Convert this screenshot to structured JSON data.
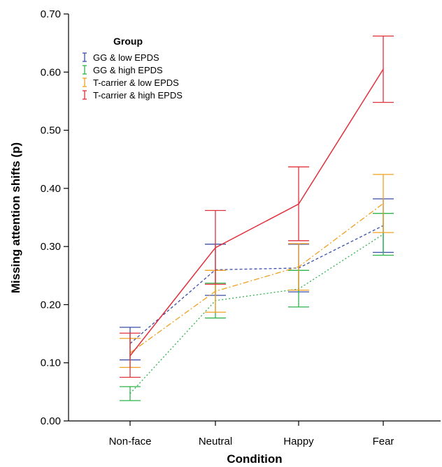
{
  "chart_data": {
    "type": "line",
    "title": "",
    "xlabel": "Condition",
    "ylabel": "Missing attention shifts (p)",
    "categories": [
      "Non-face",
      "Neutral",
      "Happy",
      "Fear"
    ],
    "ylim": [
      0,
      0.7
    ],
    "yticks": [
      "0.00",
      "0.10",
      "0.20",
      "0.30",
      "0.40",
      "0.50",
      "0.60",
      "0.70"
    ],
    "grid": false,
    "legend": {
      "title": "Group",
      "position": "top-left"
    },
    "series": [
      {
        "name": "GG & low EPDS",
        "color": "#3a4fa8",
        "dash": "dashed",
        "values": [
          0.133,
          0.26,
          0.263,
          0.336
        ],
        "err_low": [
          0.105,
          0.216,
          0.222,
          0.29
        ],
        "err_high": [
          0.161,
          0.304,
          0.304,
          0.382
        ]
      },
      {
        "name": "GG & high EPDS",
        "color": "#2db34a",
        "dash": "dotted",
        "values": [
          0.047,
          0.207,
          0.227,
          0.321
        ],
        "err_low": [
          0.035,
          0.177,
          0.196,
          0.285
        ],
        "err_high": [
          0.059,
          0.237,
          0.259,
          0.357
        ]
      },
      {
        "name": "T-carrier & low EPDS",
        "color": "#f0a020",
        "dash": "dashdot",
        "values": [
          0.117,
          0.223,
          0.265,
          0.374
        ],
        "err_low": [
          0.092,
          0.187,
          0.225,
          0.324
        ],
        "err_high": [
          0.142,
          0.259,
          0.305,
          0.424
        ]
      },
      {
        "name": "T-carrier & high EPDS",
        "color": "#e0303a",
        "dash": "solid",
        "values": [
          0.112,
          0.298,
          0.373,
          0.605
        ],
        "err_low": [
          0.075,
          0.235,
          0.31,
          0.548
        ],
        "err_high": [
          0.151,
          0.362,
          0.437,
          0.662
        ]
      }
    ]
  }
}
